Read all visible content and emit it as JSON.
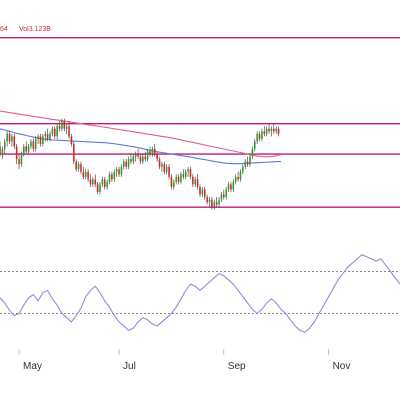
{
  "info": {
    "prefix": "64",
    "volume": "Vol3.123B"
  },
  "colors": {
    "up": "#2ca02c",
    "down": "#d62728",
    "wick": "#333333",
    "ma_fast": "#5b7fd4",
    "ma_slow": "#e0608a",
    "channel": "#c2187a",
    "rsi": "#8c8fd8",
    "rsi_levels": "#666666",
    "axis_text": "#333333",
    "info_text": "#c0392b"
  },
  "chart_data": [
    {
      "type": "candlestick",
      "title": "",
      "legend": "none",
      "grid": false,
      "x_start_month": "Apr",
      "x_end_month": "Dec",
      "x_range": [
        0,
        168
      ],
      "ylim": [
        60,
        145
      ],
      "horizontal_lines": [
        138,
        104,
        92,
        71
      ],
      "candles": [
        {
          "x": 0,
          "o": 95,
          "h": 97,
          "l": 91,
          "c": 92
        },
        {
          "x": 1,
          "o": 92,
          "h": 95,
          "l": 90,
          "c": 94
        },
        {
          "x": 2,
          "o": 94,
          "h": 98,
          "l": 92,
          "c": 97
        },
        {
          "x": 3,
          "o": 97,
          "h": 101,
          "l": 95,
          "c": 100
        },
        {
          "x": 4,
          "o": 100,
          "h": 101,
          "l": 96,
          "c": 97
        },
        {
          "x": 5,
          "o": 97,
          "h": 100,
          "l": 95,
          "c": 99
        },
        {
          "x": 6,
          "o": 99,
          "h": 100,
          "l": 94,
          "c": 95
        },
        {
          "x": 7,
          "o": 95,
          "h": 96,
          "l": 88,
          "c": 90
        },
        {
          "x": 8,
          "o": 90,
          "h": 92,
          "l": 86,
          "c": 88
        },
        {
          "x": 9,
          "o": 88,
          "h": 93,
          "l": 87,
          "c": 92
        },
        {
          "x": 10,
          "o": 92,
          "h": 96,
          "l": 91,
          "c": 95
        },
        {
          "x": 11,
          "o": 95,
          "h": 97,
          "l": 92,
          "c": 93
        },
        {
          "x": 12,
          "o": 93,
          "h": 96,
          "l": 92,
          "c": 95
        },
        {
          "x": 13,
          "o": 95,
          "h": 98,
          "l": 94,
          "c": 97
        },
        {
          "x": 14,
          "o": 97,
          "h": 98,
          "l": 93,
          "c": 94
        },
        {
          "x": 15,
          "o": 94,
          "h": 99,
          "l": 93,
          "c": 98
        },
        {
          "x": 16,
          "o": 98,
          "h": 100,
          "l": 96,
          "c": 99
        },
        {
          "x": 17,
          "o": 99,
          "h": 100,
          "l": 95,
          "c": 96
        },
        {
          "x": 18,
          "o": 96,
          "h": 100,
          "l": 95,
          "c": 99
        },
        {
          "x": 19,
          "o": 99,
          "h": 101,
          "l": 97,
          "c": 100
        },
        {
          "x": 20,
          "o": 100,
          "h": 102,
          "l": 97,
          "c": 98
        },
        {
          "x": 21,
          "o": 98,
          "h": 101,
          "l": 97,
          "c": 100
        },
        {
          "x": 22,
          "o": 100,
          "h": 103,
          "l": 99,
          "c": 102
        },
        {
          "x": 23,
          "o": 102,
          "h": 103,
          "l": 98,
          "c": 99
        },
        {
          "x": 24,
          "o": 99,
          "h": 104,
          "l": 98,
          "c": 103
        },
        {
          "x": 25,
          "o": 103,
          "h": 105,
          "l": 101,
          "c": 102
        },
        {
          "x": 26,
          "o": 102,
          "h": 106,
          "l": 101,
          "c": 105
        },
        {
          "x": 27,
          "o": 105,
          "h": 106,
          "l": 101,
          "c": 102
        },
        {
          "x": 28,
          "o": 102,
          "h": 104,
          "l": 100,
          "c": 103
        },
        {
          "x": 29,
          "o": 103,
          "h": 105,
          "l": 98,
          "c": 99
        },
        {
          "x": 30,
          "o": 99,
          "h": 100,
          "l": 95,
          "c": 96
        },
        {
          "x": 31,
          "o": 96,
          "h": 97,
          "l": 88,
          "c": 89
        },
        {
          "x": 32,
          "o": 89,
          "h": 90,
          "l": 85,
          "c": 86
        },
        {
          "x": 33,
          "o": 86,
          "h": 89,
          "l": 85,
          "c": 88
        },
        {
          "x": 34,
          "o": 88,
          "h": 89,
          "l": 84,
          "c": 85
        },
        {
          "x": 35,
          "o": 85,
          "h": 87,
          "l": 82,
          "c": 83
        },
        {
          "x": 36,
          "o": 83,
          "h": 86,
          "l": 82,
          "c": 85
        },
        {
          "x": 37,
          "o": 85,
          "h": 86,
          "l": 81,
          "c": 82
        },
        {
          "x": 38,
          "o": 82,
          "h": 84,
          "l": 79,
          "c": 80
        },
        {
          "x": 39,
          "o": 80,
          "h": 83,
          "l": 79,
          "c": 82
        },
        {
          "x": 40,
          "o": 82,
          "h": 84,
          "l": 79,
          "c": 80
        },
        {
          "x": 41,
          "o": 80,
          "h": 81,
          "l": 76,
          "c": 77
        },
        {
          "x": 42,
          "o": 77,
          "h": 81,
          "l": 76,
          "c": 80
        },
        {
          "x": 43,
          "o": 80,
          "h": 83,
          "l": 79,
          "c": 82
        },
        {
          "x": 44,
          "o": 82,
          "h": 83,
          "l": 78,
          "c": 79
        },
        {
          "x": 45,
          "o": 79,
          "h": 82,
          "l": 78,
          "c": 81
        },
        {
          "x": 46,
          "o": 81,
          "h": 85,
          "l": 80,
          "c": 84
        },
        {
          "x": 47,
          "o": 84,
          "h": 85,
          "l": 81,
          "c": 82
        },
        {
          "x": 48,
          "o": 82,
          "h": 86,
          "l": 81,
          "c": 85
        },
        {
          "x": 49,
          "o": 85,
          "h": 87,
          "l": 83,
          "c": 86
        },
        {
          "x": 50,
          "o": 86,
          "h": 87,
          "l": 83,
          "c": 84
        },
        {
          "x": 51,
          "o": 84,
          "h": 88,
          "l": 83,
          "c": 87
        },
        {
          "x": 52,
          "o": 87,
          "h": 90,
          "l": 86,
          "c": 89
        },
        {
          "x": 53,
          "o": 89,
          "h": 90,
          "l": 86,
          "c": 87
        },
        {
          "x": 54,
          "o": 87,
          "h": 91,
          "l": 86,
          "c": 90
        },
        {
          "x": 55,
          "o": 90,
          "h": 92,
          "l": 88,
          "c": 89
        },
        {
          "x": 56,
          "o": 89,
          "h": 92,
          "l": 88,
          "c": 91
        },
        {
          "x": 57,
          "o": 91,
          "h": 93,
          "l": 89,
          "c": 92
        },
        {
          "x": 58,
          "o": 92,
          "h": 94,
          "l": 90,
          "c": 91
        },
        {
          "x": 59,
          "o": 91,
          "h": 92,
          "l": 88,
          "c": 89
        },
        {
          "x": 60,
          "o": 89,
          "h": 92,
          "l": 88,
          "c": 91
        },
        {
          "x": 61,
          "o": 91,
          "h": 93,
          "l": 89,
          "c": 90
        },
        {
          "x": 62,
          "o": 90,
          "h": 94,
          "l": 89,
          "c": 93
        },
        {
          "x": 63,
          "o": 93,
          "h": 95,
          "l": 91,
          "c": 92
        },
        {
          "x": 64,
          "o": 92,
          "h": 95,
          "l": 91,
          "c": 94
        },
        {
          "x": 65,
          "o": 94,
          "h": 96,
          "l": 91,
          "c": 92
        },
        {
          "x": 66,
          "o": 92,
          "h": 93,
          "l": 89,
          "c": 90
        },
        {
          "x": 67,
          "o": 90,
          "h": 91,
          "l": 86,
          "c": 87
        },
        {
          "x": 68,
          "o": 87,
          "h": 89,
          "l": 85,
          "c": 88
        },
        {
          "x": 69,
          "o": 88,
          "h": 89,
          "l": 84,
          "c": 85
        },
        {
          "x": 70,
          "o": 85,
          "h": 88,
          "l": 84,
          "c": 87
        },
        {
          "x": 71,
          "o": 87,
          "h": 88,
          "l": 82,
          "c": 83
        },
        {
          "x": 72,
          "o": 83,
          "h": 84,
          "l": 78,
          "c": 79
        },
        {
          "x": 73,
          "o": 79,
          "h": 82,
          "l": 78,
          "c": 81
        },
        {
          "x": 74,
          "o": 81,
          "h": 84,
          "l": 80,
          "c": 83
        },
        {
          "x": 75,
          "o": 83,
          "h": 84,
          "l": 80,
          "c": 81
        },
        {
          "x": 76,
          "o": 81,
          "h": 85,
          "l": 80,
          "c": 84
        },
        {
          "x": 77,
          "o": 84,
          "h": 86,
          "l": 82,
          "c": 83
        },
        {
          "x": 78,
          "o": 83,
          "h": 86,
          "l": 82,
          "c": 85
        },
        {
          "x": 79,
          "o": 85,
          "h": 87,
          "l": 83,
          "c": 86
        },
        {
          "x": 80,
          "o": 86,
          "h": 87,
          "l": 82,
          "c": 83
        },
        {
          "x": 81,
          "o": 83,
          "h": 84,
          "l": 79,
          "c": 80
        },
        {
          "x": 82,
          "o": 80,
          "h": 83,
          "l": 79,
          "c": 82
        },
        {
          "x": 83,
          "o": 82,
          "h": 84,
          "l": 78,
          "c": 79
        },
        {
          "x": 84,
          "o": 79,
          "h": 80,
          "l": 75,
          "c": 76
        },
        {
          "x": 85,
          "o": 76,
          "h": 79,
          "l": 75,
          "c": 78
        },
        {
          "x": 86,
          "o": 78,
          "h": 79,
          "l": 74,
          "c": 75
        },
        {
          "x": 87,
          "o": 75,
          "h": 76,
          "l": 72,
          "c": 73
        },
        {
          "x": 88,
          "o": 73,
          "h": 75,
          "l": 71,
          "c": 74
        },
        {
          "x": 89,
          "o": 74,
          "h": 75,
          "l": 70,
          "c": 71
        },
        {
          "x": 90,
          "o": 71,
          "h": 74,
          "l": 70,
          "c": 73
        },
        {
          "x": 91,
          "o": 73,
          "h": 75,
          "l": 71,
          "c": 72
        },
        {
          "x": 92,
          "o": 72,
          "h": 75,
          "l": 71,
          "c": 74
        },
        {
          "x": 93,
          "o": 74,
          "h": 77,
          "l": 73,
          "c": 76
        },
        {
          "x": 94,
          "o": 76,
          "h": 78,
          "l": 74,
          "c": 75
        },
        {
          "x": 95,
          "o": 75,
          "h": 79,
          "l": 74,
          "c": 78
        },
        {
          "x": 96,
          "o": 78,
          "h": 81,
          "l": 77,
          "c": 80
        },
        {
          "x": 97,
          "o": 80,
          "h": 81,
          "l": 77,
          "c": 78
        },
        {
          "x": 98,
          "o": 78,
          "h": 82,
          "l": 77,
          "c": 81
        },
        {
          "x": 99,
          "o": 81,
          "h": 84,
          "l": 80,
          "c": 83
        },
        {
          "x": 100,
          "o": 83,
          "h": 85,
          "l": 81,
          "c": 82
        },
        {
          "x": 101,
          "o": 82,
          "h": 86,
          "l": 81,
          "c": 85
        },
        {
          "x": 102,
          "o": 85,
          "h": 88,
          "l": 84,
          "c": 87
        },
        {
          "x": 103,
          "o": 87,
          "h": 90,
          "l": 86,
          "c": 89
        },
        {
          "x": 104,
          "o": 89,
          "h": 91,
          "l": 87,
          "c": 88
        },
        {
          "x": 105,
          "o": 88,
          "h": 92,
          "l": 87,
          "c": 91
        },
        {
          "x": 106,
          "o": 91,
          "h": 95,
          "l": 90,
          "c": 94
        },
        {
          "x": 107,
          "o": 94,
          "h": 98,
          "l": 93,
          "c": 97
        },
        {
          "x": 108,
          "o": 97,
          "h": 101,
          "l": 96,
          "c": 100
        },
        {
          "x": 109,
          "o": 100,
          "h": 101,
          "l": 97,
          "c": 98
        },
        {
          "x": 110,
          "o": 98,
          "h": 102,
          "l": 97,
          "c": 101
        },
        {
          "x": 111,
          "o": 101,
          "h": 103,
          "l": 99,
          "c": 100
        },
        {
          "x": 112,
          "o": 100,
          "h": 103,
          "l": 99,
          "c": 102
        },
        {
          "x": 113,
          "o": 102,
          "h": 104,
          "l": 100,
          "c": 101
        },
        {
          "x": 114,
          "o": 101,
          "h": 103,
          "l": 99,
          "c": 102
        },
        {
          "x": 115,
          "o": 102,
          "h": 104,
          "l": 100,
          "c": 101
        },
        {
          "x": 116,
          "o": 101,
          "h": 103,
          "l": 100,
          "c": 102
        },
        {
          "x": 117,
          "o": 102,
          "h": 103,
          "l": 99,
          "c": 100
        }
      ]
    },
    {
      "type": "line",
      "title": "",
      "legend": "none",
      "grid": false,
      "x_range": [
        0,
        168
      ],
      "ylim": [
        60,
        145
      ],
      "series": [
        {
          "values": [
            102,
            101.5,
            101,
            100.5,
            100,
            99.6,
            99.1,
            98.7,
            98.3,
            98,
            97.8,
            97.6,
            97.5,
            97.4,
            97.3,
            97.2,
            97.1,
            97,
            96.9,
            96.8,
            96.7,
            96.6,
            96.5,
            96.3,
            96.1,
            95.8,
            95.5,
            95.2,
            94.9,
            94.5,
            94.1,
            93.7,
            93.3,
            92.9,
            92.6,
            92.3,
            92,
            91.7,
            91.4,
            91.1,
            90.8,
            90.5,
            90.1,
            89.8,
            89.4,
            89.1,
            88.8,
            88.5,
            88.3,
            88.2,
            88.2,
            88.3,
            88.4,
            88.5,
            88.6,
            88.7,
            88.8,
            88.9,
            89,
            89
          ]
        },
        {
          "values": [
            109,
            108.7,
            108.4,
            108.1,
            107.8,
            107.5,
            107.2,
            106.9,
            106.6,
            106.3,
            106,
            105.7,
            105.5,
            105.2,
            104.9,
            104.6,
            104.3,
            104,
            103.7,
            103.4,
            103.2,
            102.9,
            102.6,
            102.3,
            102,
            101.7,
            101.4,
            101.1,
            100.8,
            100.5,
            100.2,
            99.9,
            99.6,
            99.3,
            99,
            98.7,
            98.4,
            98,
            97.6,
            97.2,
            96.8,
            96.4,
            96,
            95.6,
            95.2,
            94.8,
            94.4,
            94,
            93.6,
            93.2,
            92.8,
            92.4,
            92,
            91.6,
            91.2,
            91,
            90.9,
            91,
            91.3,
            91.8
          ]
        }
      ],
      "series_x_step": 2
    },
    {
      "type": "line",
      "title": "",
      "legend": "none",
      "grid": false,
      "x_range": [
        0,
        168
      ],
      "ylim": [
        0,
        100
      ],
      "reference_lines": [
        70,
        30
      ],
      "series": [
        {
          "values": [
            45,
            40,
            33,
            28,
            30,
            38,
            45,
            48,
            42,
            50,
            52,
            44,
            38,
            30,
            26,
            22,
            28,
            35,
            46,
            52,
            56,
            50,
            42,
            36,
            28,
            22,
            18,
            14,
            16,
            22,
            26,
            24,
            20,
            18,
            22,
            26,
            30,
            36,
            44,
            52,
            58,
            56,
            52,
            56,
            60,
            64,
            68,
            66,
            62,
            58,
            52,
            46,
            40,
            34,
            30,
            34,
            40,
            44,
            40,
            34,
            30,
            24,
            18,
            14,
            12,
            16,
            22,
            30,
            38,
            46,
            54,
            62,
            68,
            74,
            78,
            82,
            86,
            84,
            82,
            80,
            82,
            76,
            70,
            64,
            58
          ]
        }
      ],
      "series_x_step": 2
    }
  ],
  "x_axis": {
    "ticks": [
      {
        "label": "May",
        "x": 8
      },
      {
        "label": "Jul",
        "x": 50
      },
      {
        "label": "Sep",
        "x": 94
      },
      {
        "label": "Nov",
        "x": 138
      }
    ]
  }
}
